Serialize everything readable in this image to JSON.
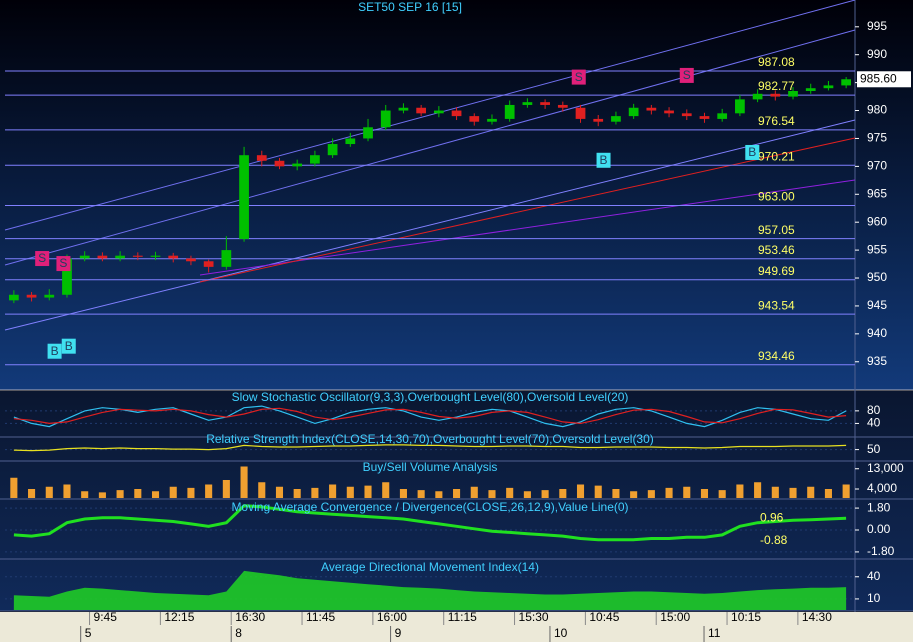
{
  "chart_data": [
    {
      "type": "candlestick",
      "title": "SET50 SEP 16  [15]",
      "xlim": [
        0,
        48
      ],
      "xticks": [
        {
          "value": 5,
          "label": "9:45"
        },
        {
          "value": 9,
          "label": "12:15"
        },
        {
          "value": 13,
          "label": "16:30"
        },
        {
          "value": 17,
          "label": "11:45"
        },
        {
          "value": 21,
          "label": "16:00"
        },
        {
          "value": 25,
          "label": "11:15"
        },
        {
          "value": 29,
          "label": "15:30"
        },
        {
          "value": 33,
          "label": "10:45"
        },
        {
          "value": 37,
          "label": "15:00"
        },
        {
          "value": 41,
          "label": "10:15"
        },
        {
          "value": 45,
          "label": "14:30"
        }
      ],
      "day_ticks": [
        {
          "value": 4.5,
          "label": "5"
        },
        {
          "value": 13,
          "label": "8"
        },
        {
          "value": 22,
          "label": "9"
        },
        {
          "value": 31,
          "label": "10"
        },
        {
          "value": 39.7,
          "label": "11"
        }
      ],
      "ylim": [
        930.3,
        999.8
      ],
      "yticks": [
        935,
        940,
        945,
        950,
        955,
        960,
        965,
        970,
        975,
        980,
        985,
        990,
        995
      ],
      "last_price": {
        "value": 985.6,
        "label": "985.60"
      },
      "up_color": "#00c000",
      "down_color": "#e02020",
      "open": [
        946,
        947,
        946.5,
        947,
        953.5,
        954,
        953.5,
        954,
        953.8,
        954,
        953.5,
        953,
        952,
        957,
        972,
        971,
        970,
        970.5,
        972,
        974,
        975,
        977,
        980,
        980.5,
        979.5,
        980,
        979,
        978,
        978.5,
        981,
        981.5,
        981,
        980.5,
        978.5,
        978,
        979,
        980.5,
        980,
        979.5,
        979,
        978.5,
        979.5,
        982,
        983,
        982.5,
        983.5,
        984,
        984.5
      ],
      "high": [
        947.8,
        947.5,
        948,
        954.2,
        954.8,
        954.6,
        954.8,
        954.6,
        954.7,
        954.5,
        954,
        953.3,
        957.5,
        973.5,
        972.8,
        971.5,
        971.2,
        972.8,
        975,
        976,
        978.5,
        981,
        981.3,
        981,
        980.8,
        980.6,
        979.5,
        979.3,
        981.8,
        982.2,
        982,
        981.6,
        981,
        979.2,
        979.8,
        981.2,
        981,
        980.6,
        980.2,
        979.6,
        980.3,
        982.8,
        983.8,
        983.6,
        984.2,
        984.8,
        985.3,
        986
      ],
      "low": [
        945.5,
        945.8,
        946,
        946.5,
        953,
        953,
        953,
        953.2,
        953.2,
        952.8,
        952.3,
        951,
        951.5,
        956.5,
        970,
        969.5,
        969.3,
        970,
        971.5,
        973.5,
        974.5,
        976.5,
        979.5,
        979,
        978.8,
        978.3,
        977.3,
        977.5,
        978,
        980.5,
        980.3,
        979.8,
        977.8,
        977.2,
        977.5,
        978.5,
        979.3,
        978.8,
        978.3,
        977.8,
        978,
        979,
        981.5,
        981.8,
        982,
        983,
        983.6,
        984
      ],
      "close": [
        947,
        946.5,
        947,
        953.5,
        954,
        953.5,
        954,
        953.8,
        954,
        953.5,
        953,
        952,
        955,
        972,
        971,
        970,
        970.5,
        972,
        974,
        975,
        977,
        980,
        980.5,
        979.5,
        980,
        979,
        978,
        978.5,
        981,
        981.5,
        981,
        980.5,
        978.5,
        978,
        979,
        980.5,
        980,
        979.5,
        979,
        978.5,
        979.5,
        982,
        983,
        982.5,
        983.5,
        984,
        984.5,
        985.6
      ],
      "levels": [
        {
          "value": 987.08,
          "label": "987.08"
        },
        {
          "value": 982.77,
          "label": "982.77"
        },
        {
          "value": 976.54,
          "label": "976.54"
        },
        {
          "value": 970.21,
          "label": "970.21"
        },
        {
          "value": 963,
          "label": "963.00"
        },
        {
          "value": 957.05,
          "label": "957.05"
        },
        {
          "value": 953.46,
          "label": "953.46"
        },
        {
          "value": 949.69,
          "label": "949.69"
        },
        {
          "value": 943.54,
          "label": "943.54"
        },
        {
          "value": 934.46,
          "label": "934.46"
        }
      ],
      "signals": [
        {
          "label": "S",
          "x": 2.1,
          "y": 953.4
        },
        {
          "label": "S",
          "x": 3.3,
          "y": 952.5
        },
        {
          "label": "S",
          "x": 32.4,
          "y": 985.9
        },
        {
          "label": "S",
          "x": 38.5,
          "y": 986.2
        },
        {
          "label": "B",
          "x": 2.8,
          "y": 936.8
        },
        {
          "label": "B",
          "x": 3.6,
          "y": 937.7
        },
        {
          "label": "B",
          "x": 33.8,
          "y": 971
        },
        {
          "label": "B",
          "x": 42.2,
          "y": 972.4
        }
      ]
    },
    {
      "type": "line",
      "title": "Slow Stochastic Oscillator(9,3,3),Overbought Level(80),Oversold Level(20)",
      "ylim": [
        0,
        140
      ],
      "yticks": [
        40,
        80
      ],
      "series": [
        {
          "color": "#30c0f0",
          "values": [
            60,
            40,
            30,
            55,
            80,
            90,
            85,
            75,
            85,
            90,
            70,
            50,
            60,
            90,
            95,
            80,
            60,
            40,
            55,
            75,
            85,
            90,
            80,
            60,
            50,
            60,
            75,
            85,
            80,
            60,
            40,
            30,
            45,
            70,
            85,
            90,
            80,
            60,
            40,
            30,
            50,
            75,
            90,
            85,
            70,
            55,
            50,
            80
          ]
        },
        {
          "color": "#e02020",
          "values": [
            55,
            50,
            40,
            45,
            60,
            75,
            85,
            82,
            80,
            85,
            80,
            68,
            60,
            70,
            85,
            88,
            78,
            60,
            52,
            60,
            72,
            83,
            85,
            75,
            62,
            57,
            62,
            75,
            80,
            75,
            60,
            45,
            40,
            52,
            68,
            82,
            85,
            78,
            62,
            45,
            42,
            55,
            72,
            85,
            83,
            72,
            60,
            65
          ]
        }
      ]
    },
    {
      "type": "line",
      "title": "Relative Strength Index(CLOSE,14,30,70),Overbought Level(70),Oversold Level(30)",
      "ylim": [
        30,
        80
      ],
      "yticks": [
        50
      ],
      "series": [
        {
          "color": "#e8e020",
          "values": [
            49,
            48,
            49,
            52,
            53,
            52,
            53,
            52,
            52,
            51,
            51,
            50,
            52,
            58,
            56,
            55,
            55,
            56,
            57,
            57,
            58,
            59,
            59,
            58,
            58,
            57,
            56,
            56,
            57,
            57,
            56,
            56,
            54,
            54,
            55,
            55,
            55,
            54,
            54,
            53,
            54,
            56,
            56,
            56,
            57,
            57,
            57,
            58
          ]
        }
      ]
    },
    {
      "type": "bar",
      "title": "Buy/Sell Volume Analysis",
      "ylim": [
        0,
        16000
      ],
      "yticks": [
        {
          "value": 13000,
          "label": "13,000"
        },
        {
          "value": 4000,
          "label": "4,000"
        }
      ],
      "color": "#f0a030",
      "values": [
        9000,
        4000,
        5000,
        6000,
        3000,
        2500,
        3500,
        4000,
        3000,
        5000,
        4500,
        6000,
        8000,
        14000,
        7000,
        5000,
        4000,
        4500,
        6000,
        5000,
        5500,
        7000,
        4000,
        3500,
        3000,
        4000,
        5000,
        3500,
        4500,
        3000,
        3500,
        4000,
        6000,
        5500,
        4000,
        3000,
        3500,
        4500,
        5000,
        4000,
        3500,
        6000,
        7000,
        5000,
        4500,
        5000,
        4000,
        6000
      ]
    },
    {
      "type": "line",
      "title": "Moving Average Convergence / Divergence(CLOSE,26,12,9),Value Line(0)",
      "ylim": [
        -2.3,
        2.3
      ],
      "yticks": [
        {
          "value": 1.8,
          "label": "1.80"
        },
        {
          "value": 0,
          "label": "0.00"
        },
        {
          "value": -1.8,
          "label": "-1.80"
        }
      ],
      "annotations": [
        0.96,
        -0.88
      ],
      "series": [
        {
          "color": "#20e020",
          "values": [
            -0.4,
            -0.5,
            -0.3,
            0.6,
            0.9,
            1.0,
            1.0,
            0.9,
            0.8,
            0.7,
            0.5,
            0.3,
            0.6,
            2.0,
            1.9,
            1.7,
            1.5,
            1.4,
            1.3,
            1.2,
            1.1,
            1.0,
            0.9,
            0.7,
            0.5,
            0.3,
            0.1,
            -0.1,
            -0.2,
            -0.3,
            -0.4,
            -0.5,
            -0.7,
            -0.8,
            -0.8,
            -0.8,
            -0.7,
            -0.7,
            -0.6,
            -0.6,
            -0.4,
            0.3,
            0.6,
            0.7,
            0.8,
            0.85,
            0.9,
            0.96
          ]
        }
      ]
    },
    {
      "type": "area",
      "title": "Average Directional Movement Index(14)",
      "ylim": [
        -5,
        60
      ],
      "yticks": [
        40,
        10
      ],
      "color": "#20e020",
      "values": [
        15,
        14,
        13,
        20,
        25,
        24,
        22,
        20,
        18,
        17,
        16,
        15,
        20,
        48,
        45,
        42,
        38,
        36,
        34,
        32,
        30,
        28,
        26,
        25,
        24,
        22,
        20,
        19,
        18,
        17,
        16,
        16,
        17,
        18,
        19,
        20,
        20,
        19,
        18,
        17,
        18,
        20,
        22,
        23,
        24,
        25,
        25,
        26
      ]
    }
  ]
}
